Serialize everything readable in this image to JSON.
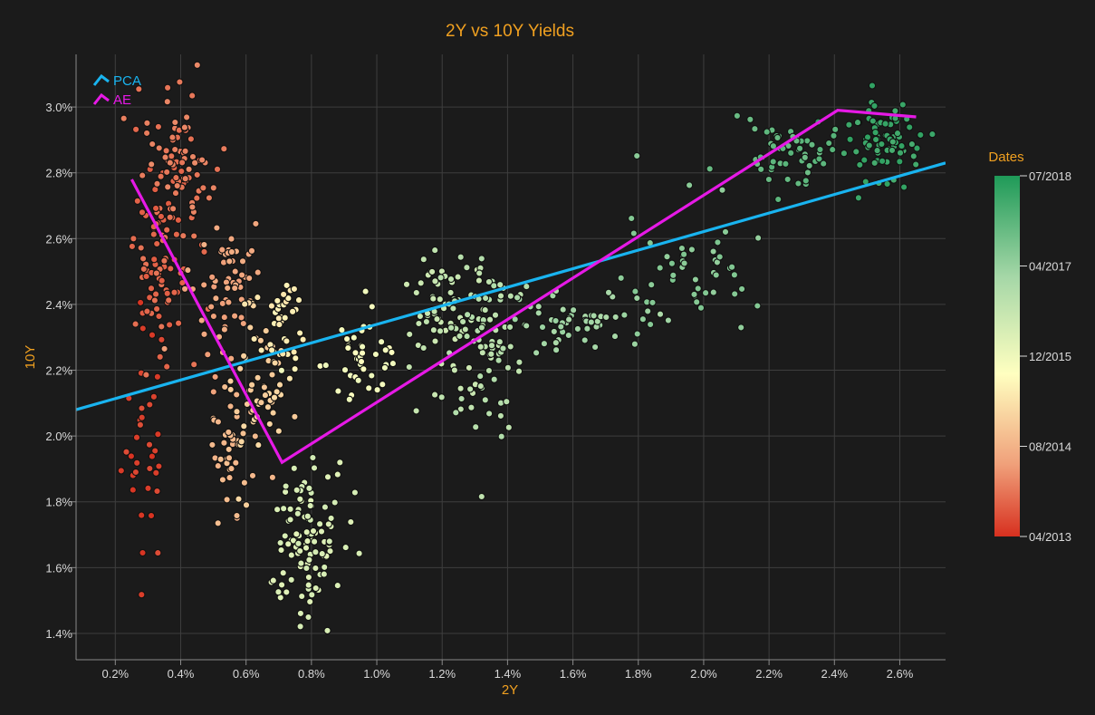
{
  "chart_data": {
    "type": "scatter",
    "title": "2Y vs 10Y Yields",
    "xlabel": "2Y",
    "ylabel": "10Y",
    "xlim": [
      0.08,
      2.74
    ],
    "ylim": [
      1.32,
      3.16
    ],
    "grid": true,
    "x_ticks": [
      0.2,
      0.4,
      0.6,
      0.8,
      1.0,
      1.2,
      1.4,
      1.6,
      1.8,
      2.0,
      2.2,
      2.4,
      2.6
    ],
    "x_tick_labels": [
      "0.2%",
      "0.4%",
      "0.6%",
      "0.8%",
      "1.0%",
      "1.2%",
      "1.4%",
      "1.6%",
      "1.8%",
      "2.0%",
      "2.2%",
      "2.4%",
      "2.6%"
    ],
    "y_ticks": [
      1.4,
      1.6,
      1.8,
      2.0,
      2.2,
      2.4,
      2.6,
      2.8,
      3.0
    ],
    "y_tick_labels": [
      "1.4%",
      "1.6%",
      "1.8%",
      "2.0%",
      "2.2%",
      "2.4%",
      "2.6%",
      "2.8%",
      "3.0%"
    ],
    "legend": {
      "placement": "top-left",
      "entries": [
        {
          "label": "PCA",
          "color": "#19b4f0"
        },
        {
          "label": "AE",
          "color": "#e619e6"
        }
      ]
    },
    "lines": [
      {
        "name": "PCA",
        "color": "#19b4f0",
        "x": [
          0.08,
          2.74
        ],
        "y": [
          2.08,
          2.83
        ]
      },
      {
        "name": "AE",
        "color": "#e619e6",
        "x": [
          0.25,
          0.71,
          2.41,
          2.65
        ],
        "y": [
          2.78,
          1.92,
          2.99,
          2.97
        ]
      }
    ],
    "colorbar": {
      "title": "Dates",
      "labels": [
        "07/2018",
        "04/2017",
        "12/2015",
        "08/2014",
        "04/2013"
      ],
      "colors": [
        "#1f9a58",
        "#a5d7a7",
        "#ffffc0",
        "#f0a07a",
        "#d7301f"
      ]
    },
    "scatter_clusters": [
      {
        "date_frac": 0.03,
        "cx": 0.29,
        "cy": 2.0,
        "sx": 0.035,
        "sy": 0.2,
        "n": 35
      },
      {
        "date_frac": 0.1,
        "cx": 0.34,
        "cy": 2.55,
        "sx": 0.05,
        "sy": 0.15,
        "n": 90
      },
      {
        "date_frac": 0.14,
        "cx": 0.4,
        "cy": 2.85,
        "sx": 0.05,
        "sy": 0.1,
        "n": 70
      },
      {
        "date_frac": 0.22,
        "cx": 0.52,
        "cy": 2.45,
        "sx": 0.05,
        "sy": 0.12,
        "n": 60
      },
      {
        "date_frac": 0.27,
        "cx": 0.55,
        "cy": 1.92,
        "sx": 0.04,
        "sy": 0.12,
        "n": 40
      },
      {
        "date_frac": 0.33,
        "cx": 0.63,
        "cy": 2.15,
        "sx": 0.05,
        "sy": 0.12,
        "n": 55
      },
      {
        "date_frac": 0.4,
        "cx": 0.71,
        "cy": 2.33,
        "sx": 0.04,
        "sy": 0.07,
        "n": 40
      },
      {
        "date_frac": 0.48,
        "cx": 0.95,
        "cy": 2.25,
        "sx": 0.06,
        "sy": 0.06,
        "n": 45
      },
      {
        "date_frac": 0.56,
        "cx": 0.78,
        "cy": 1.68,
        "sx": 0.06,
        "sy": 0.13,
        "n": 110
      },
      {
        "date_frac": 0.62,
        "cx": 1.2,
        "cy": 2.38,
        "sx": 0.07,
        "sy": 0.09,
        "n": 70
      },
      {
        "date_frac": 0.66,
        "cx": 1.33,
        "cy": 2.3,
        "sx": 0.06,
        "sy": 0.15,
        "n": 80
      },
      {
        "date_frac": 0.72,
        "cx": 1.62,
        "cy": 2.35,
        "sx": 0.12,
        "sy": 0.04,
        "n": 55
      },
      {
        "date_frac": 0.78,
        "cx": 1.95,
        "cy": 2.5,
        "sx": 0.1,
        "sy": 0.1,
        "n": 50
      },
      {
        "date_frac": 0.86,
        "cx": 2.27,
        "cy": 2.85,
        "sx": 0.08,
        "sy": 0.05,
        "n": 55
      },
      {
        "date_frac": 0.94,
        "cx": 2.55,
        "cy": 2.9,
        "sx": 0.06,
        "sy": 0.06,
        "n": 80
      }
    ]
  }
}
